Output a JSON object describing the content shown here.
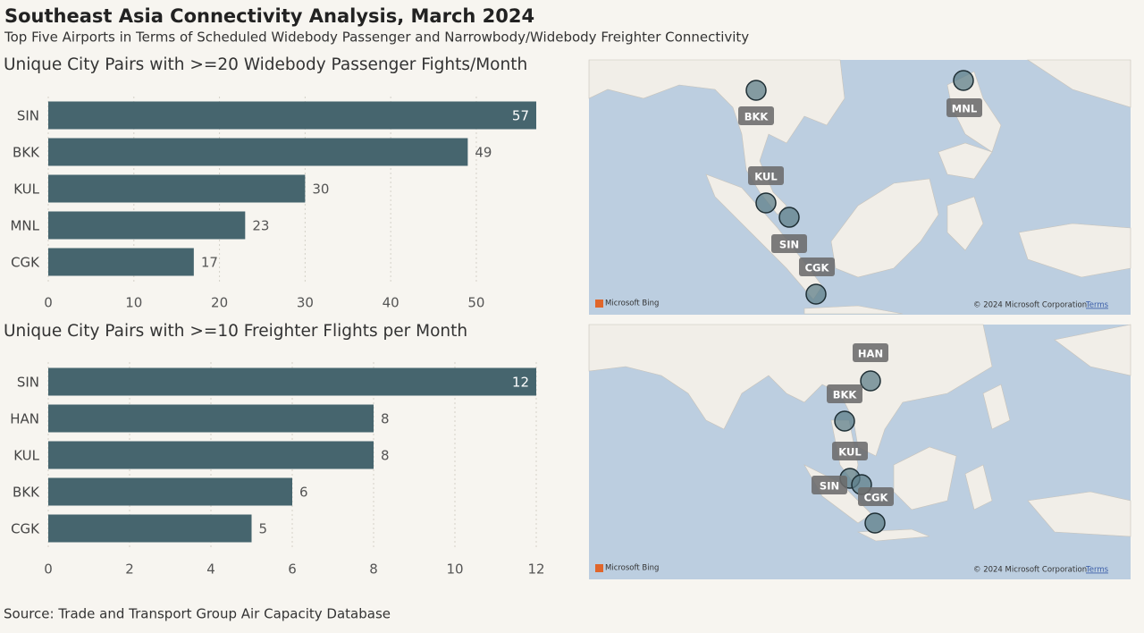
{
  "header": {
    "title": "Southeast Asia Connectivity Analysis, March 2024",
    "subtitle": "Top Five Airports in Terms of Scheduled Widebody Passenger and Narrowbody/Widebody Freighter Connectivity"
  },
  "chart_data": [
    {
      "type": "hbar",
      "title": "Unique City Pairs with >=20 Widebody Passenger Fights/Month",
      "categories": [
        "SIN",
        "BKK",
        "KUL",
        "MNL",
        "CGK"
      ],
      "values": [
        57,
        49,
        30,
        23,
        17
      ],
      "color": "#46656e",
      "xlim": [
        0,
        57
      ],
      "xticks": [
        0,
        10,
        20,
        30,
        40,
        50
      ],
      "grid": true
    },
    {
      "type": "hbar",
      "title": "Unique City Pairs with >=10 Freighter Flights per Month",
      "categories": [
        "SIN",
        "HAN",
        "KUL",
        "BKK",
        "CGK"
      ],
      "values": [
        12,
        8,
        8,
        6,
        5
      ],
      "color": "#46656e",
      "xlim": [
        0,
        12
      ],
      "xticks": [
        0,
        2,
        4,
        6,
        8,
        10,
        12
      ],
      "grid": true
    }
  ],
  "maps": [
    {
      "markers": [
        "BKK",
        "MNL",
        "KUL",
        "SIN",
        "CGK"
      ],
      "logo": "Microsoft Bing",
      "copyright": "© 2024 Microsoft Corporation",
      "terms": "Terms"
    },
    {
      "markers": [
        "HAN",
        "BKK",
        "KUL",
        "SIN",
        "CGK"
      ],
      "logo": "Microsoft Bing",
      "copyright": "© 2024 Microsoft Corporation",
      "terms": "Terms"
    }
  ],
  "footer": {
    "source": "Source: Trade and Transport Group Air Capacity Database"
  }
}
